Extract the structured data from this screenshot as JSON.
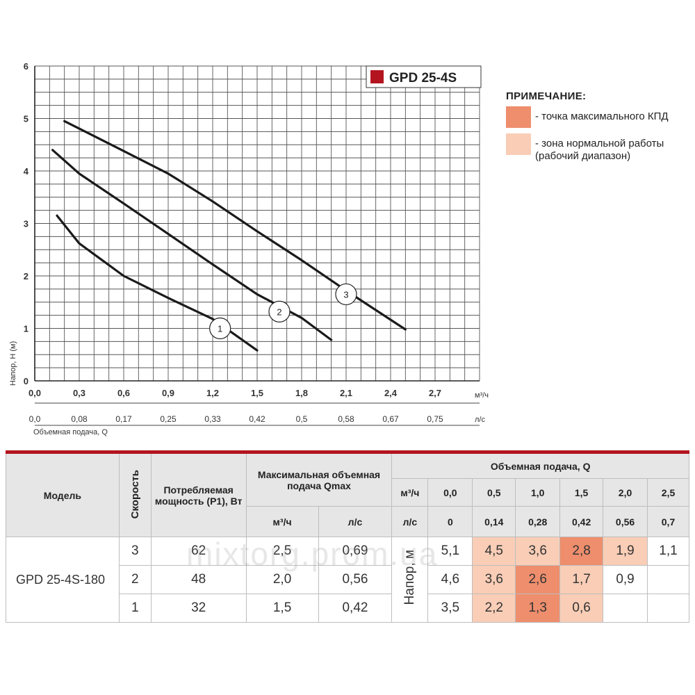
{
  "chart_data": {
    "type": "line",
    "title": "GPD 25-4S",
    "brand_color": "#b3141f",
    "ylabel": "Напор, Н (м)",
    "xlabel": "Объемная подача, Q",
    "x_unit": "м³/ч",
    "x2_unit": "л/с",
    "xlim": [
      0,
      3.0
    ],
    "ylim": [
      0,
      6
    ],
    "grid": true,
    "x_ticks": [
      "0,0",
      "0,3",
      "0,6",
      "0,9",
      "1,2",
      "1,5",
      "1,8",
      "2,1",
      "2,4",
      "2,7"
    ],
    "x2_ticks": [
      "0,0",
      "0,08",
      "0,17",
      "0,25",
      "0,33",
      "0,42",
      "0,5",
      "0,58",
      "0,67",
      "0,75"
    ],
    "y_ticks": [
      "0",
      "1",
      "2",
      "3",
      "4",
      "5",
      "6"
    ],
    "series": [
      {
        "name": "1",
        "points": [
          [
            0.15,
            3.15
          ],
          [
            0.3,
            2.62
          ],
          [
            0.6,
            2.0
          ],
          [
            0.9,
            1.58
          ],
          [
            1.2,
            1.18
          ],
          [
            1.5,
            0.58
          ]
        ]
      },
      {
        "name": "2",
        "points": [
          [
            0.12,
            4.4
          ],
          [
            0.3,
            3.95
          ],
          [
            0.6,
            3.38
          ],
          [
            0.9,
            2.8
          ],
          [
            1.2,
            2.22
          ],
          [
            1.5,
            1.65
          ],
          [
            1.8,
            1.2
          ],
          [
            2.0,
            0.78
          ]
        ]
      },
      {
        "name": "3",
        "points": [
          [
            0.2,
            4.95
          ],
          [
            0.6,
            4.38
          ],
          [
            0.9,
            3.95
          ],
          [
            1.2,
            3.42
          ],
          [
            1.5,
            2.85
          ],
          [
            1.8,
            2.3
          ],
          [
            2.1,
            1.72
          ],
          [
            2.5,
            0.98
          ]
        ]
      }
    ],
    "curve_labels": [
      {
        "name": "1",
        "x": 1.25,
        "y": 1.0
      },
      {
        "name": "2",
        "x": 1.65,
        "y": 1.32
      },
      {
        "name": "3",
        "x": 2.1,
        "y": 1.65
      }
    ]
  },
  "note": {
    "title": "ПРИМЕЧАНИЕ:",
    "items": [
      {
        "text": "- точка максимального КПД",
        "color": "#ee8e6d"
      },
      {
        "text": "- зона нормальной работы (рабочий диапазон)",
        "color": "#f9cdb6"
      }
    ]
  },
  "table": {
    "h_model": "Модель",
    "h_speed": "Скорость",
    "h_power": "Потребляемая мощность (P1), Вт",
    "h_qmax": "Максимальная объемная подача Qmax",
    "h_flow": "Объемная подача, Q",
    "h_m3h": "м³/ч",
    "h_ls": "л/с",
    "h_head": "Напор, м",
    "flow_m3h": [
      "0,0",
      "0,5",
      "1,0",
      "1,5",
      "2,0",
      "2,5"
    ],
    "flow_ls": [
      "0",
      "0,14",
      "0,28",
      "0,42",
      "0,56",
      "0,7"
    ],
    "model": "GPD 25-4S-180",
    "rows": [
      {
        "speed": "3",
        "power": "62",
        "q_m3h": "2,5",
        "q_ls": "0,69",
        "heads": [
          "5,1",
          "4,5",
          "3,6",
          "2,8",
          "1,9",
          "1,1"
        ]
      },
      {
        "speed": "2",
        "power": "48",
        "q_m3h": "2,0",
        "q_ls": "0,56",
        "heads": [
          "4,6",
          "3,6",
          "2,6",
          "1,7",
          "0,9",
          ""
        ]
      },
      {
        "speed": "1",
        "power": "32",
        "q_m3h": "1,5",
        "q_ls": "0,42",
        "heads": [
          "3,5",
          "2,2",
          "1,3",
          "0,6",
          "",
          ""
        ]
      }
    ]
  },
  "watermark": "mixtorg.prom.ua"
}
